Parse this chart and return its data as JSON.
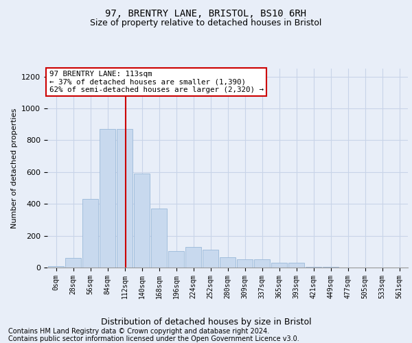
{
  "title1": "97, BRENTRY LANE, BRISTOL, BS10 6RH",
  "title2": "Size of property relative to detached houses in Bristol",
  "xlabel": "Distribution of detached houses by size in Bristol",
  "ylabel": "Number of detached properties",
  "footer1": "Contains HM Land Registry data © Crown copyright and database right 2024.",
  "footer2": "Contains public sector information licensed under the Open Government Licence v3.0.",
  "annotation_title": "97 BRENTRY LANE: 113sqm",
  "annotation_line1": "← 37% of detached houses are smaller (1,390)",
  "annotation_line2": "62% of semi-detached houses are larger (2,320) →",
  "bins_labels": [
    "0sqm",
    "28sqm",
    "56sqm",
    "84sqm",
    "112sqm",
    "140sqm",
    "168sqm",
    "196sqm",
    "224sqm",
    "252sqm",
    "280sqm",
    "309sqm",
    "337sqm",
    "365sqm",
    "393sqm",
    "421sqm",
    "449sqm",
    "477sqm",
    "505sqm",
    "533sqm",
    "561sqm"
  ],
  "bar_values": [
    10,
    60,
    430,
    870,
    870,
    590,
    370,
    105,
    130,
    110,
    65,
    50,
    50,
    30,
    30,
    5,
    5,
    2,
    1,
    0,
    0
  ],
  "bar_color": "#c8d9ee",
  "bar_edge_color": "#9ab8d8",
  "vline_color": "#cc0000",
  "vline_x_idx": 4.04,
  "box_edge_color": "#cc0000",
  "box_face_color": "white",
  "ylim": [
    0,
    1250
  ],
  "yticks": [
    0,
    200,
    400,
    600,
    800,
    1000,
    1200
  ],
  "grid_color": "#c8d4e8",
  "bg_color": "#e8eef8",
  "fig_bg_color": "#e8eef8",
  "title1_fontsize": 10,
  "title2_fontsize": 9,
  "annotation_fontsize": 7.8,
  "footer_fontsize": 7.0,
  "ylabel_fontsize": 8,
  "xlabel_fontsize": 9,
  "tick_fontsize": 7
}
